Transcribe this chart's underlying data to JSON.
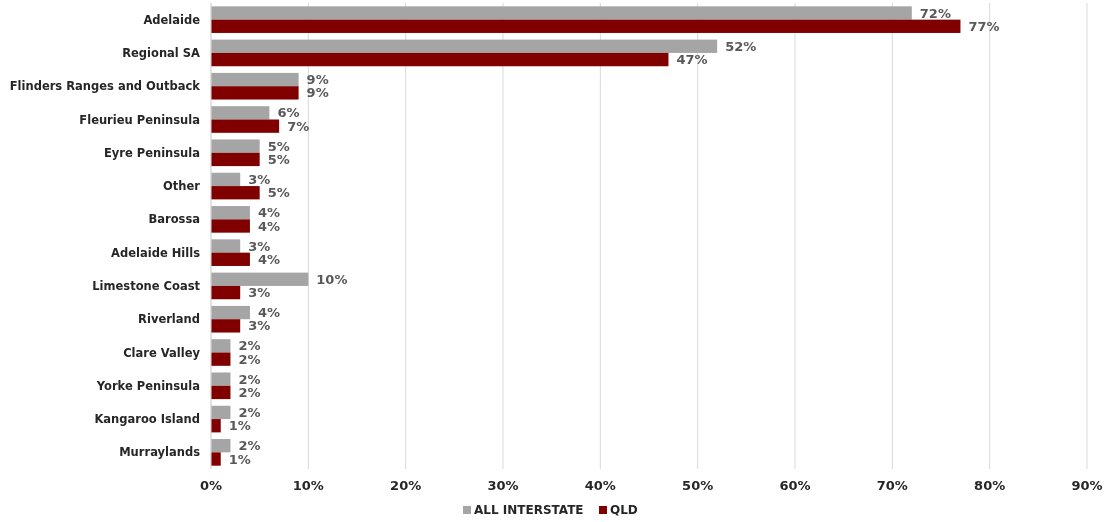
{
  "chart_data": {
    "type": "bar",
    "orientation": "horizontal",
    "categories": [
      "Adelaide",
      "Regional SA",
      "Flinders Ranges and Outback",
      "Fleurieu Peninsula",
      "Eyre Peninsula",
      "Other",
      "Barossa",
      "Adelaide Hills",
      "Limestone Coast",
      "Riverland",
      "Clare Valley",
      "Yorke Peninsula",
      "Kangaroo Island",
      "Murraylands"
    ],
    "series": [
      {
        "name": "ALL INTERSTATE",
        "color": "#a5a5a5",
        "values": [
          72,
          52,
          9,
          6,
          5,
          3,
          4,
          3,
          10,
          4,
          2,
          2,
          2,
          2
        ],
        "value_labels": [
          "72%",
          "52%",
          "9%",
          "6%",
          "5%",
          "3%",
          "4%",
          "3%",
          "10%",
          "4%",
          "2%",
          "2%",
          "2%",
          "2%"
        ]
      },
      {
        "name": "QLD",
        "color": "#800000",
        "values": [
          77,
          47,
          9,
          7,
          5,
          5,
          4,
          4,
          3,
          3,
          2,
          2,
          1,
          1
        ],
        "value_labels": [
          "77%",
          "47%",
          "9%",
          "7%",
          "5%",
          "5%",
          "4%",
          "4%",
          "3%",
          "3%",
          "2%",
          "2%",
          "1%",
          "1%"
        ]
      }
    ],
    "xlim": [
      0,
      90
    ],
    "xticks": [
      {
        "value": 0,
        "label": "0%"
      },
      {
        "value": 10,
        "label": "10%"
      },
      {
        "value": 20,
        "label": "20%"
      },
      {
        "value": 30,
        "label": "30%"
      },
      {
        "value": 40,
        "label": "40%"
      },
      {
        "value": 50,
        "label": "50%"
      },
      {
        "value": 60,
        "label": "60%"
      },
      {
        "value": 70,
        "label": "70%"
      },
      {
        "value": 80,
        "label": "80%"
      },
      {
        "value": 90,
        "label": "90%"
      }
    ],
    "grid": "x",
    "legend": "bottom"
  }
}
